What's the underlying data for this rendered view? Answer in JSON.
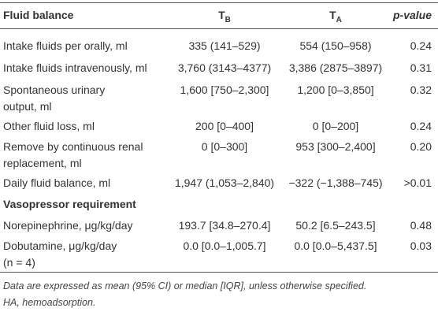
{
  "table": {
    "header": [
      "Fluid balance",
      {
        "main": "T",
        "sub": "B"
      },
      {
        "main": "T",
        "sub": "A"
      },
      "p-value"
    ],
    "rows": [
      {
        "label": [
          "Intake fluids per orally, ml"
        ],
        "cells": [
          "335 (141–529)",
          "554 (150–958)",
          "0.24"
        ]
      },
      {
        "label": [
          "Intake fluids intravenously, ml"
        ],
        "cells": [
          "3,760 (3143–4377)",
          "3,386 (2875–3897)",
          "0.31"
        ]
      },
      {
        "label": [
          "Spontaneous urinary",
          "output, ml"
        ],
        "cells": [
          "1,600 [750–2,300]",
          "1,200 [0–3,850]",
          "0.32"
        ]
      },
      {
        "label": [
          "Other fluid loss, ml"
        ],
        "cells": [
          "200 [0–400]",
          "0 [0–200]",
          "0.24"
        ]
      },
      {
        "label": [
          "Remove by continuous renal",
          "replacement, ml"
        ],
        "cells": [
          "0 [0–300]",
          "953 [300–2,400]",
          "0.20"
        ]
      },
      {
        "label": [
          "Daily fluid balance, ml"
        ],
        "cells": [
          "1,947 (1,053–2,840)",
          "−322 (−1,388–745)",
          ">0.01"
        ]
      },
      {
        "section": "Vasopressor requirement"
      },
      {
        "label": [
          "Norepinephrine, μg/kg/day"
        ],
        "cells": [
          "193.7 [34.8–270.4]",
          "50.2 [6.5–243.5]",
          "0.48"
        ]
      },
      {
        "label": [
          "Dobutamine, μg/kg/day",
          "(n = 4)"
        ],
        "cells": [
          "0.0 [0.0–1,005.7]",
          "0.0 [0.0–5,437.5]",
          "0.03"
        ]
      }
    ]
  },
  "footnote": [
    "Data are expressed as mean (95% CI) or median [IQR], unless otherwise specified.",
    "HA, hemoadsorption."
  ]
}
